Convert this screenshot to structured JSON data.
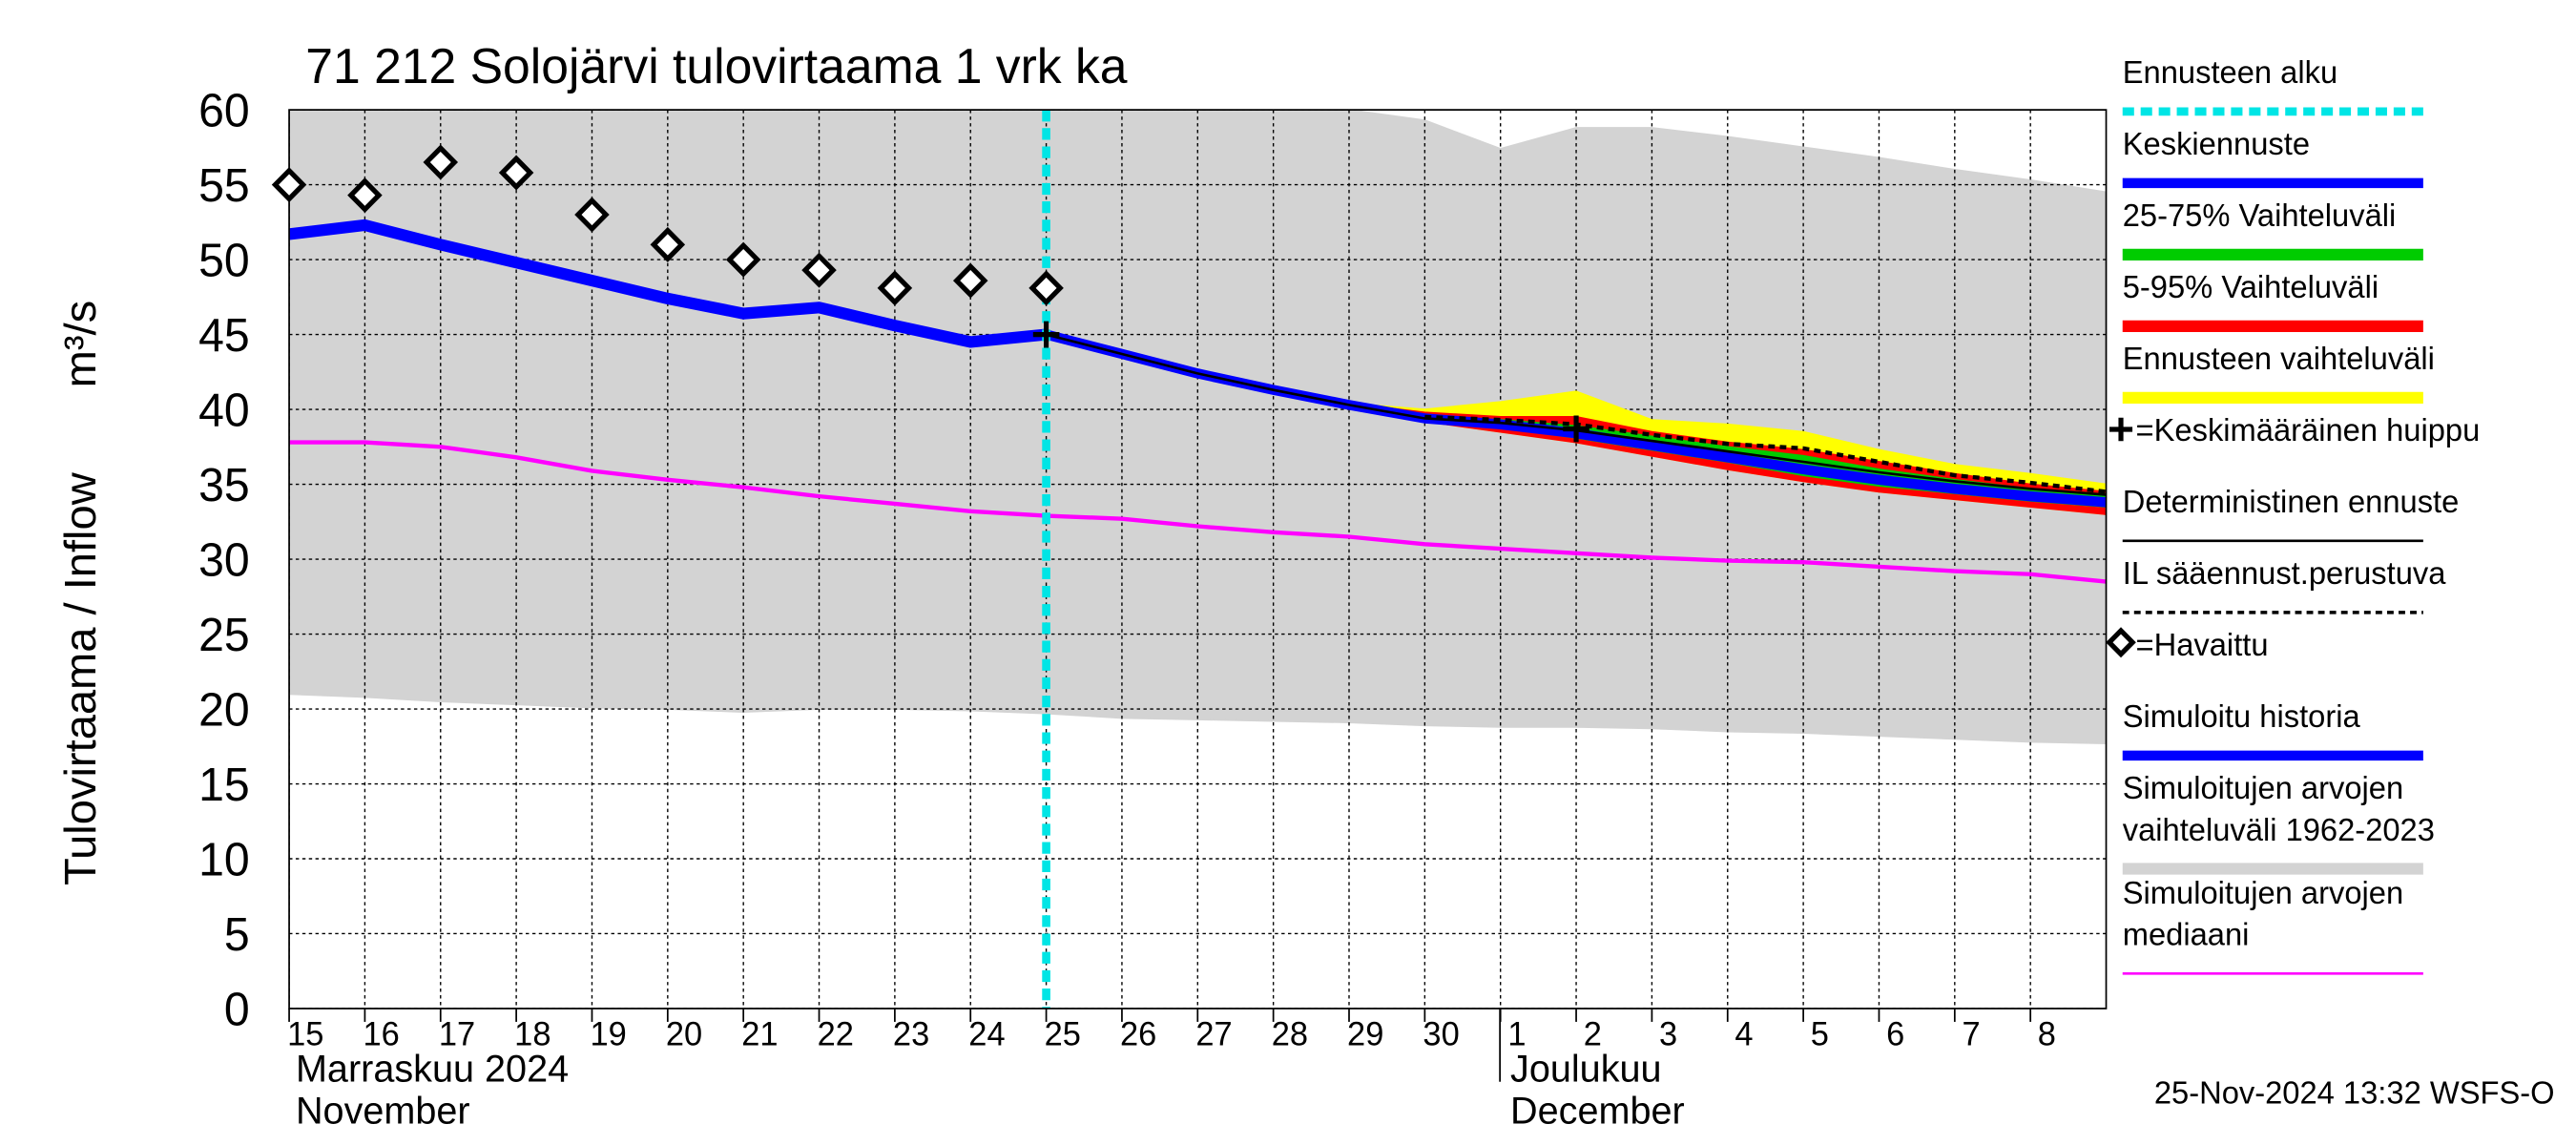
{
  "chart_data": {
    "type": "line",
    "title": "71 212 Solojärvi tulovirtaama 1 vrk ka",
    "y_label": "Tulovirtaama / Inflow",
    "y_unit": "m³/s",
    "month_labels": [
      {
        "x": "2024-11-15",
        "lines": [
          "Marraskuu 2024",
          "November"
        ]
      },
      {
        "x": "2024-12-01",
        "lines": [
          "Joulukuu",
          "December"
        ]
      }
    ],
    "footer": "25-Nov-2024 13:32 WSFS-O",
    "grid": true,
    "x": [
      "2024-11-15",
      "2024-11-16",
      "2024-11-17",
      "2024-11-18",
      "2024-11-19",
      "2024-11-20",
      "2024-11-21",
      "2024-11-22",
      "2024-11-23",
      "2024-11-24",
      "2024-11-25",
      "2024-11-26",
      "2024-11-27",
      "2024-11-28",
      "2024-11-29",
      "2024-11-30",
      "2024-12-01",
      "2024-12-02",
      "2024-12-03",
      "2024-12-04",
      "2024-12-05",
      "2024-12-06",
      "2024-12-07",
      "2024-12-08",
      "2024-12-09"
    ],
    "xlim": [
      "2024-11-15",
      "2024-12-09"
    ],
    "xticks": [
      {
        "value": "2024-11-15",
        "label": "15"
      },
      {
        "value": "2024-11-16",
        "label": "16"
      },
      {
        "value": "2024-11-17",
        "label": "17"
      },
      {
        "value": "2024-11-18",
        "label": "18"
      },
      {
        "value": "2024-11-19",
        "label": "19"
      },
      {
        "value": "2024-11-20",
        "label": "20"
      },
      {
        "value": "2024-11-21",
        "label": "21"
      },
      {
        "value": "2024-11-22",
        "label": "22"
      },
      {
        "value": "2024-11-23",
        "label": "23"
      },
      {
        "value": "2024-11-24",
        "label": "24"
      },
      {
        "value": "2024-11-25",
        "label": "25"
      },
      {
        "value": "2024-11-26",
        "label": "26"
      },
      {
        "value": "2024-11-27",
        "label": "27"
      },
      {
        "value": "2024-11-28",
        "label": "28"
      },
      {
        "value": "2024-11-29",
        "label": "29"
      },
      {
        "value": "2024-11-30",
        "label": "30"
      },
      {
        "value": "2024-12-01",
        "label": "1"
      },
      {
        "value": "2024-12-02",
        "label": "2"
      },
      {
        "value": "2024-12-03",
        "label": "3"
      },
      {
        "value": "2024-12-04",
        "label": "4"
      },
      {
        "value": "2024-12-05",
        "label": "5"
      },
      {
        "value": "2024-12-06",
        "label": "6"
      },
      {
        "value": "2024-12-07",
        "label": "7"
      },
      {
        "value": "2024-12-08",
        "label": "8"
      }
    ],
    "ylim": [
      0,
      60
    ],
    "yticks": [
      0,
      5,
      10,
      15,
      20,
      25,
      30,
      35,
      40,
      45,
      50,
      55,
      60
    ],
    "series": [
      {
        "name": "Ennusteen alku",
        "type": "vline",
        "color": "#00e5e5",
        "x": "2024-11-25"
      },
      {
        "name": "Keskiennuste",
        "type": "line",
        "color": "#0000ff",
        "width": 6,
        "values": [
          null,
          null,
          null,
          null,
          null,
          null,
          null,
          null,
          null,
          null,
          45,
          43.7,
          42.4,
          41.3,
          40.3,
          39.4,
          39,
          38.4,
          37.6,
          36.8,
          36,
          35.3,
          34.7,
          34.2,
          33.8
        ]
      },
      {
        "name": "25-75% Vaihteluväli",
        "type": "band",
        "color": "#00cc00",
        "low": [
          null,
          null,
          null,
          null,
          null,
          null,
          null,
          null,
          null,
          null,
          45,
          43.7,
          42.4,
          41.3,
          40.3,
          39.3,
          38.8,
          38.1,
          37.3,
          36.5,
          35.6,
          34.9,
          34.4,
          33.9,
          33.5
        ],
        "high": [
          null,
          null,
          null,
          null,
          null,
          null,
          null,
          null,
          null,
          null,
          45,
          43.7,
          42.4,
          41.3,
          40.3,
          39.5,
          39.3,
          38.9,
          38.2,
          37.5,
          36.9,
          36,
          35.3,
          34.7,
          34.2
        ]
      },
      {
        "name": "5-95% Vaihteluväli",
        "type": "band",
        "color": "#ff0000",
        "low": [
          null,
          null,
          null,
          null,
          null,
          null,
          null,
          null,
          null,
          null,
          45,
          43.7,
          42.4,
          41.3,
          40.2,
          39.2,
          38.5,
          37.8,
          36.9,
          36,
          35.2,
          34.5,
          34,
          33.5,
          33
        ],
        "high": [
          null,
          null,
          null,
          null,
          null,
          null,
          null,
          null,
          null,
          null,
          45,
          43.7,
          42.4,
          41.3,
          40.4,
          39.8,
          39.5,
          39.5,
          38.5,
          37.8,
          37.3,
          36.5,
          35.7,
          35,
          34.5
        ]
      },
      {
        "name": "Ennusteen vaihteluväli",
        "type": "band",
        "color": "#ffff00",
        "low": [
          null,
          null,
          null,
          null,
          null,
          null,
          null,
          null,
          null,
          null,
          45,
          43.7,
          42.4,
          41.3,
          40.2,
          39.2,
          38.5,
          37.8,
          36.9,
          36,
          35.2,
          34.5,
          34,
          33.5,
          33
        ],
        "high": [
          null,
          null,
          null,
          null,
          null,
          null,
          null,
          null,
          null,
          null,
          45,
          43.7,
          42.4,
          41.3,
          40.4,
          40,
          40.5,
          41.2,
          39.3,
          39,
          38.5,
          37.3,
          36.3,
          35.7,
          35
        ]
      },
      {
        "name": "=Keskimääräinen huippu",
        "type": "peak",
        "color": "#000000",
        "values": [
          null,
          null,
          null,
          null,
          null,
          null,
          null,
          null,
          null,
          null,
          45,
          null,
          null,
          null,
          null,
          null,
          null,
          38.7,
          null,
          null,
          null,
          null,
          null,
          null,
          null
        ]
      },
      {
        "name": "Deterministinen ennuste",
        "type": "line",
        "color": "#000000",
        "width": 1.5,
        "values": [
          null,
          null,
          null,
          null,
          null,
          null,
          null,
          null,
          null,
          null,
          45,
          43.7,
          42.4,
          41.3,
          40.3,
          39.4,
          39.1,
          38.6,
          37.9,
          37.2,
          36.5,
          35.8,
          35.2,
          34.7,
          34.3
        ]
      },
      {
        "name": "IL sääennust.perustuva",
        "type": "line",
        "color": "#000000",
        "width": 2.5,
        "dash": true,
        "values": [
          null,
          null,
          null,
          null,
          null,
          null,
          null,
          null,
          null,
          null,
          null,
          null,
          null,
          null,
          null,
          39.5,
          39.3,
          39,
          38.3,
          37.7,
          37.4,
          36.5,
          35.6,
          35.1,
          34.5
        ]
      },
      {
        "name": "=Havaittu",
        "type": "marker",
        "color": "#000000",
        "values": [
          55,
          54.3,
          56.5,
          55.8,
          53,
          51,
          50,
          49.3,
          48.1,
          48.6,
          48.1,
          null,
          null,
          null,
          null,
          null,
          null,
          null,
          null,
          null,
          null,
          null,
          null,
          null,
          null
        ]
      },
      {
        "name": "Simuloitu historia",
        "type": "line",
        "color": "#0000ff",
        "width": 7,
        "values": [
          51.7,
          52.3,
          51,
          49.8,
          48.6,
          47.4,
          46.4,
          46.8,
          45.6,
          44.5,
          45,
          null,
          null,
          null,
          null,
          null,
          null,
          null,
          null,
          null,
          null,
          null,
          null,
          null,
          null
        ]
      },
      {
        "name": "Simuloitujen arvojen vaihteluväli 1962-2023",
        "type": "band",
        "color": "#d3d3d3",
        "low": [
          21,
          20.8,
          20.5,
          20.3,
          20.1,
          20,
          19.8,
          20,
          20,
          19.9,
          19.7,
          19.4,
          19.3,
          19.2,
          19.1,
          18.9,
          18.8,
          18.8,
          18.7,
          18.5,
          18.4,
          18.2,
          18,
          17.8,
          17.7
        ],
        "high": [
          60,
          60,
          60,
          60,
          60,
          60,
          60,
          60,
          60,
          60,
          60,
          60,
          60,
          60,
          60,
          59.3,
          57.4,
          58.8,
          58.8,
          58.2,
          57.5,
          56.8,
          56,
          55.3,
          54.5
        ]
      },
      {
        "name": "Simuloitujen arvojen mediaani",
        "type": "line",
        "color": "#ff00ff",
        "width": 2.5,
        "values": [
          37.8,
          37.8,
          37.5,
          36.8,
          35.9,
          35.3,
          34.8,
          34.2,
          33.7,
          33.2,
          32.9,
          32.7,
          32.2,
          31.8,
          31.5,
          31,
          30.7,
          30.4,
          30.1,
          29.9,
          29.8,
          29.5,
          29.2,
          29,
          28.5
        ]
      }
    ]
  }
}
